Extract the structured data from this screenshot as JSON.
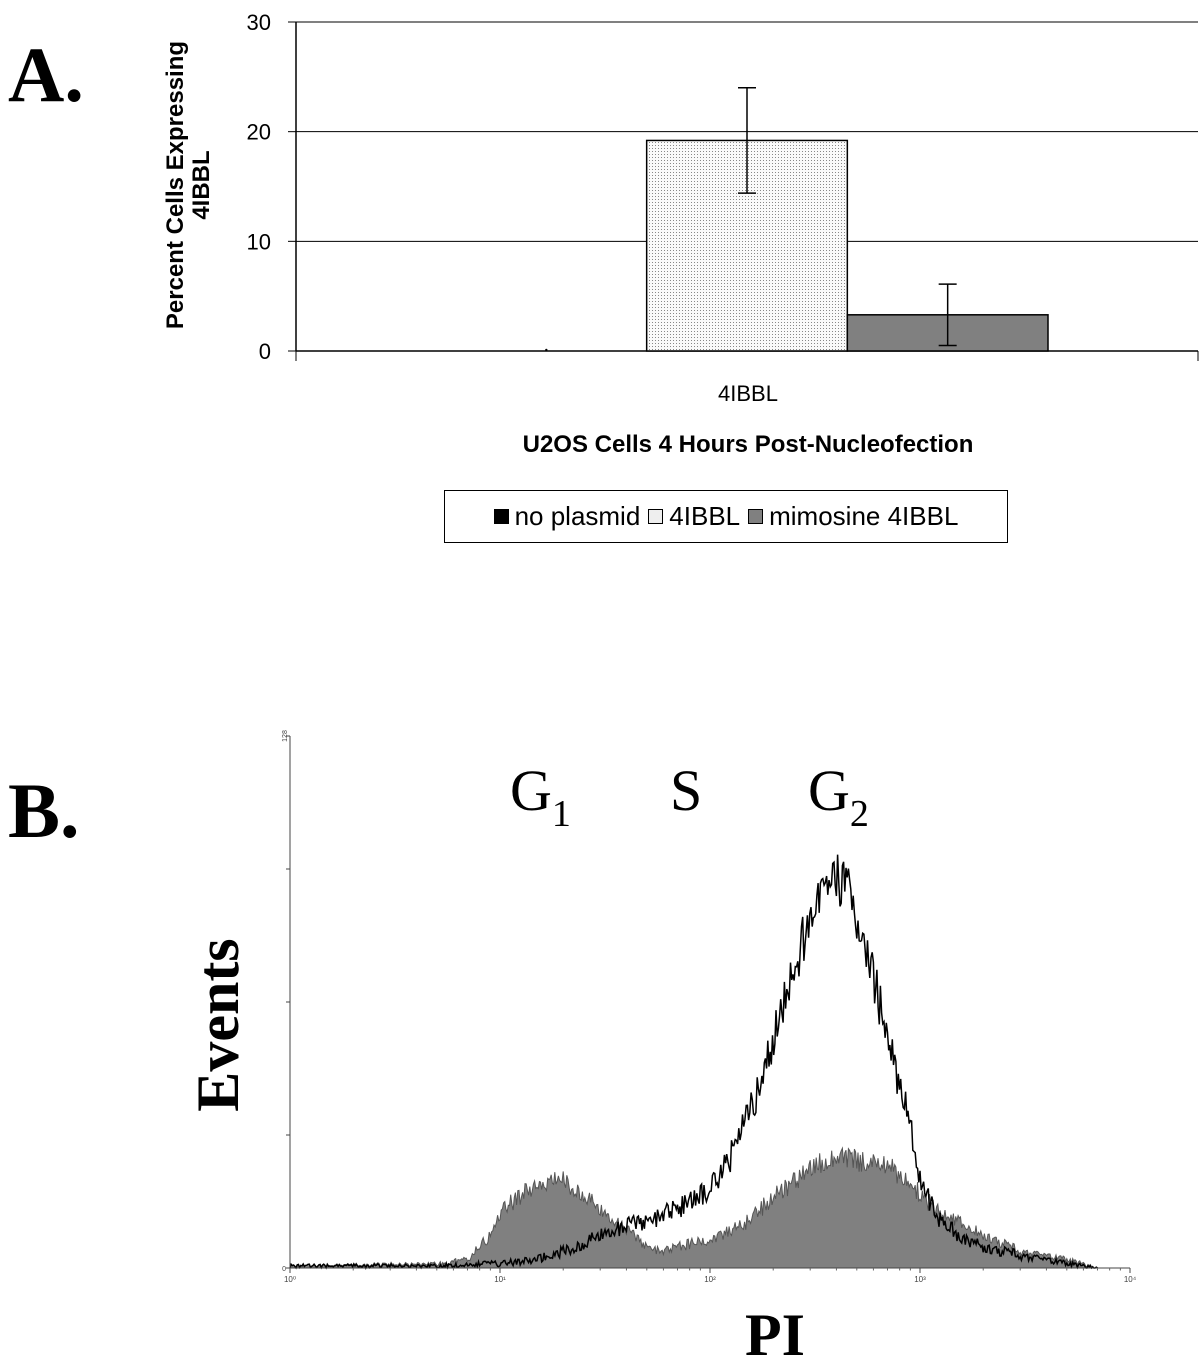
{
  "panels": {
    "a": "A.",
    "b": "B."
  },
  "colors": {
    "no_plasmid": "#000000",
    "plasmid": "#eeeeee",
    "mimosine": "#808080",
    "histogram_fill": "#808080"
  },
  "chart_data": [
    {
      "type": "bar",
      "categories": [
        "4IBBL"
      ],
      "series": [
        {
          "name": "no plasmid",
          "values": [
            0
          ],
          "error": [
            0
          ]
        },
        {
          "name": "4IBBL",
          "values": [
            19.2
          ],
          "error": [
            4.8
          ]
        },
        {
          "name": "mimosine 4IBBL",
          "values": [
            3.3
          ],
          "error": [
            2.8
          ]
        }
      ],
      "xlabel": "U2OS Cells 4 Hours Post-Nucleofection",
      "ylabel": "Percent Cells Expressing 4IBBL",
      "ylim": [
        0,
        30
      ],
      "yticks": [
        "0",
        "10",
        "20",
        "30"
      ],
      "grid": true,
      "legend": "bottom"
    },
    {
      "type": "area",
      "xlabel": "PI",
      "ylabel": "Events",
      "xscale": "log",
      "xlim": [
        1,
        10000
      ],
      "ylim": [
        0,
        128
      ],
      "xtick_labels": [
        "10⁰",
        "10¹",
        "10²",
        "10³",
        "10⁴"
      ],
      "ytick_labels": {
        "bottom": "0",
        "top": "128"
      },
      "annotations": [
        {
          "text": "G",
          "sub": "1"
        },
        {
          "text": "S",
          "sub": ""
        },
        {
          "text": "G",
          "sub": "2"
        }
      ],
      "series": [
        {
          "style": "filled",
          "x": [
            1,
            5,
            7,
            9,
            10,
            12,
            15,
            18,
            20,
            25,
            30,
            40,
            50,
            60,
            70,
            100,
            150,
            200,
            300,
            400,
            500,
            700,
            900,
            1200,
            2000,
            3000,
            5000,
            7000
          ],
          "y": [
            0.5,
            1,
            2,
            8,
            13,
            17,
            20,
            22,
            21,
            18,
            14,
            9,
            5,
            4,
            5,
            7,
            11,
            17,
            24,
            27,
            26,
            25,
            20,
            14,
            8,
            4,
            2,
            0
          ]
        },
        {
          "style": "outline",
          "x": [
            1,
            5,
            8,
            10,
            12,
            15,
            20,
            25,
            30,
            40,
            50,
            60,
            70,
            80,
            100,
            130,
            170,
            220,
            280,
            340,
            400,
            450,
            500,
            600,
            700,
            900,
            1000,
            1200,
            1500,
            2000,
            3000,
            5000,
            7000
          ],
          "y": [
            0.5,
            0.5,
            1,
            1,
            1.5,
            2,
            4,
            6,
            8,
            10,
            11,
            13,
            14,
            16,
            19,
            28,
            43,
            63,
            80,
            93,
            94,
            91,
            84,
            70,
            55,
            35,
            22,
            12,
            8,
            5,
            3,
            1,
            0
          ]
        }
      ]
    }
  ]
}
